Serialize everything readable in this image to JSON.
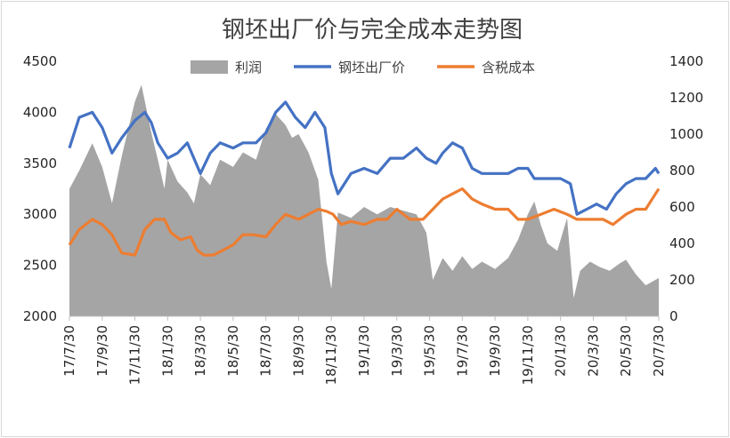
{
  "chart_data": {
    "type": "line",
    "title": "钢坯出厂价与完全成本走势图",
    "legend_position": "top",
    "grid": false,
    "left_axis": {
      "min": 2000,
      "max": 4500,
      "ticks": [
        "2000",
        "2500",
        "3000",
        "3500",
        "4000",
        "4500"
      ]
    },
    "right_axis": {
      "min": 0,
      "max": 1400,
      "ticks": [
        "0",
        "200",
        "400",
        "600",
        "800",
        "1000",
        "1200",
        "1400"
      ]
    },
    "x_labels": [
      "17/7/30",
      "17/9/30",
      "17/11/30",
      "18/1/30",
      "18/3/30",
      "18/5/30",
      "18/7/30",
      "18/9/30",
      "18/11/30",
      "19/1/30",
      "19/3/30",
      "19/5/30",
      "19/7/30",
      "19/9/30",
      "19/11/30",
      "20/1/30",
      "20/3/30",
      "20/5/30",
      "20/7/30"
    ],
    "series": [
      {
        "name": "利润",
        "type": "area",
        "axis": "right",
        "color": "#a5a5a5",
        "points": [
          [
            0,
            700
          ],
          [
            0.3,
            800
          ],
          [
            0.7,
            950
          ],
          [
            1,
            820
          ],
          [
            1.3,
            620
          ],
          [
            1.6,
            880
          ],
          [
            2,
            1180
          ],
          [
            2.2,
            1270
          ],
          [
            2.5,
            1010
          ],
          [
            2.7,
            860
          ],
          [
            2.9,
            700
          ],
          [
            3,
            860
          ],
          [
            3.3,
            740
          ],
          [
            3.6,
            680
          ],
          [
            3.8,
            620
          ],
          [
            4,
            780
          ],
          [
            4.3,
            720
          ],
          [
            4.6,
            860
          ],
          [
            5,
            820
          ],
          [
            5.3,
            900
          ],
          [
            5.7,
            860
          ],
          [
            6,
            1030
          ],
          [
            6.3,
            1110
          ],
          [
            6.6,
            1050
          ],
          [
            6.8,
            980
          ],
          [
            7,
            1000
          ],
          [
            7.3,
            900
          ],
          [
            7.6,
            750
          ],
          [
            7.85,
            300
          ],
          [
            8,
            150
          ],
          [
            8.2,
            570
          ],
          [
            8.6,
            540
          ],
          [
            9,
            600
          ],
          [
            9.4,
            560
          ],
          [
            9.8,
            600
          ],
          [
            10.2,
            580
          ],
          [
            10.6,
            560
          ],
          [
            10.9,
            460
          ],
          [
            11.1,
            200
          ],
          [
            11.4,
            320
          ],
          [
            11.7,
            250
          ],
          [
            12,
            330
          ],
          [
            12.3,
            260
          ],
          [
            12.6,
            300
          ],
          [
            13,
            260
          ],
          [
            13.4,
            320
          ],
          [
            13.7,
            420
          ],
          [
            14,
            560
          ],
          [
            14.2,
            630
          ],
          [
            14.4,
            500
          ],
          [
            14.6,
            400
          ],
          [
            14.9,
            360
          ],
          [
            15.2,
            540
          ],
          [
            15.4,
            100
          ],
          [
            15.6,
            250
          ],
          [
            15.9,
            300
          ],
          [
            16.2,
            270
          ],
          [
            16.5,
            250
          ],
          [
            16.8,
            290
          ],
          [
            17,
            310
          ],
          [
            17.3,
            230
          ],
          [
            17.6,
            170
          ],
          [
            17.9,
            200
          ],
          [
            18,
            210
          ]
        ]
      },
      {
        "name": "钢坯出厂价",
        "type": "line",
        "axis": "left",
        "color": "#4472c4",
        "points": [
          [
            0,
            3650
          ],
          [
            0.3,
            3950
          ],
          [
            0.7,
            4000
          ],
          [
            1,
            3850
          ],
          [
            1.3,
            3600
          ],
          [
            1.6,
            3750
          ],
          [
            2,
            3920
          ],
          [
            2.3,
            4000
          ],
          [
            2.5,
            3900
          ],
          [
            2.7,
            3700
          ],
          [
            3,
            3550
          ],
          [
            3.3,
            3600
          ],
          [
            3.6,
            3700
          ],
          [
            3.8,
            3550
          ],
          [
            4,
            3400
          ],
          [
            4.3,
            3600
          ],
          [
            4.6,
            3700
          ],
          [
            5,
            3650
          ],
          [
            5.3,
            3700
          ],
          [
            5.7,
            3700
          ],
          [
            6,
            3800
          ],
          [
            6.3,
            4000
          ],
          [
            6.6,
            4100
          ],
          [
            6.9,
            3950
          ],
          [
            7.2,
            3850
          ],
          [
            7.5,
            4000
          ],
          [
            7.8,
            3850
          ],
          [
            8,
            3400
          ],
          [
            8.2,
            3200
          ],
          [
            8.6,
            3400
          ],
          [
            9,
            3450
          ],
          [
            9.4,
            3400
          ],
          [
            9.8,
            3550
          ],
          [
            10.2,
            3550
          ],
          [
            10.6,
            3650
          ],
          [
            10.9,
            3550
          ],
          [
            11.2,
            3500
          ],
          [
            11.4,
            3600
          ],
          [
            11.7,
            3700
          ],
          [
            12,
            3650
          ],
          [
            12.3,
            3450
          ],
          [
            12.6,
            3400
          ],
          [
            13,
            3400
          ],
          [
            13.4,
            3400
          ],
          [
            13.7,
            3450
          ],
          [
            14,
            3450
          ],
          [
            14.2,
            3350
          ],
          [
            14.6,
            3350
          ],
          [
            15,
            3350
          ],
          [
            15.3,
            3300
          ],
          [
            15.5,
            3000
          ],
          [
            15.8,
            3050
          ],
          [
            16.1,
            3100
          ],
          [
            16.4,
            3050
          ],
          [
            16.7,
            3200
          ],
          [
            17,
            3300
          ],
          [
            17.3,
            3350
          ],
          [
            17.6,
            3350
          ],
          [
            17.9,
            3450
          ],
          [
            18,
            3400
          ]
        ]
      },
      {
        "name": "含税成本",
        "type": "line",
        "axis": "left",
        "color": "#ed7d31",
        "points": [
          [
            0,
            2700
          ],
          [
            0.3,
            2850
          ],
          [
            0.7,
            2950
          ],
          [
            1,
            2900
          ],
          [
            1.3,
            2800
          ],
          [
            1.6,
            2620
          ],
          [
            2,
            2600
          ],
          [
            2.3,
            2850
          ],
          [
            2.6,
            2950
          ],
          [
            2.9,
            2950
          ],
          [
            3.1,
            2820
          ],
          [
            3.4,
            2750
          ],
          [
            3.7,
            2780
          ],
          [
            3.9,
            2650
          ],
          [
            4.1,
            2600
          ],
          [
            4.4,
            2600
          ],
          [
            4.7,
            2650
          ],
          [
            5,
            2700
          ],
          [
            5.3,
            2800
          ],
          [
            5.6,
            2800
          ],
          [
            6,
            2780
          ],
          [
            6.3,
            2900
          ],
          [
            6.6,
            3000
          ],
          [
            7,
            2950
          ],
          [
            7.3,
            3000
          ],
          [
            7.6,
            3050
          ],
          [
            7.85,
            3030
          ],
          [
            8.05,
            3000
          ],
          [
            8.3,
            2900
          ],
          [
            8.6,
            2930
          ],
          [
            9,
            2900
          ],
          [
            9.4,
            2950
          ],
          [
            9.7,
            2950
          ],
          [
            10,
            3050
          ],
          [
            10.4,
            2950
          ],
          [
            10.8,
            2950
          ],
          [
            11.1,
            3050
          ],
          [
            11.4,
            3150
          ],
          [
            11.7,
            3200
          ],
          [
            12,
            3250
          ],
          [
            12.3,
            3150
          ],
          [
            12.6,
            3100
          ],
          [
            13,
            3050
          ],
          [
            13.4,
            3050
          ],
          [
            13.7,
            2950
          ],
          [
            14,
            2950
          ],
          [
            14.4,
            3000
          ],
          [
            14.8,
            3050
          ],
          [
            15.2,
            3000
          ],
          [
            15.5,
            2950
          ],
          [
            15.9,
            2950
          ],
          [
            16.3,
            2950
          ],
          [
            16.6,
            2900
          ],
          [
            17,
            3000
          ],
          [
            17.3,
            3050
          ],
          [
            17.6,
            3050
          ],
          [
            17.9,
            3200
          ],
          [
            18,
            3250
          ]
        ]
      }
    ]
  }
}
